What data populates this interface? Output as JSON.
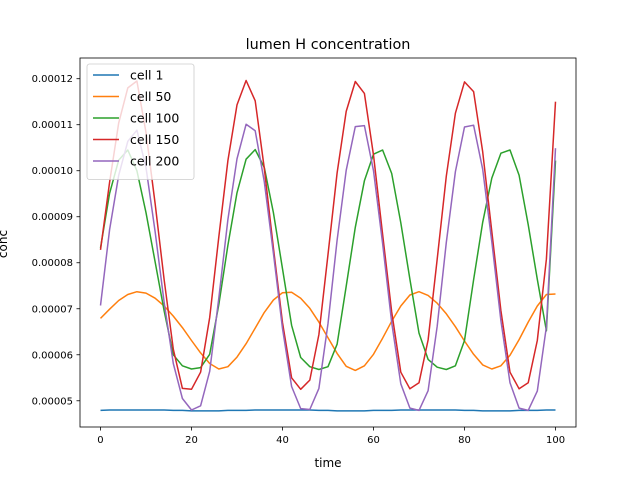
{
  "chart_data": {
    "type": "line",
    "title": "lumen H concentration",
    "xlabel": "time",
    "ylabel": "conc",
    "xlim": [
      -4.5,
      104.5
    ],
    "ylim": [
      4.43e-05,
      0.0001245
    ],
    "xticks": [
      0,
      20,
      40,
      60,
      80,
      100
    ],
    "xtick_labels": [
      "0",
      "20",
      "40",
      "60",
      "80",
      "100"
    ],
    "yticks": [
      5e-05,
      6e-05,
      7e-05,
      8e-05,
      9e-05,
      0.0001,
      0.00011,
      0.00012
    ],
    "ytick_labels": [
      "0.00005",
      "0.00006",
      "0.00007",
      "0.00008",
      "0.00009",
      "0.00010",
      "0.00011",
      "0.00012"
    ],
    "grid": false,
    "legend_position": "top-left",
    "x": [
      0,
      2,
      4,
      6,
      8,
      10,
      12,
      14,
      16,
      18,
      20,
      22,
      24,
      26,
      28,
      30,
      32,
      34,
      36,
      38,
      40,
      42,
      44,
      46,
      48,
      50,
      52,
      54,
      56,
      58,
      60,
      62,
      64,
      66,
      68,
      70,
      72,
      74,
      76,
      78,
      80,
      82,
      84,
      86,
      88,
      90,
      92,
      94,
      96,
      98,
      100
    ],
    "series": [
      {
        "name": "cell 1",
        "color": "#1f77b4",
        "values": [
          4.79e-05,
          4.8e-05,
          4.8e-05,
          4.8e-05,
          4.8e-05,
          4.8e-05,
          4.8e-05,
          4.8e-05,
          4.79e-05,
          4.79e-05,
          4.78e-05,
          4.78e-05,
          4.78e-05,
          4.78e-05,
          4.79e-05,
          4.79e-05,
          4.79e-05,
          4.8e-05,
          4.8e-05,
          4.8e-05,
          4.8e-05,
          4.8e-05,
          4.8e-05,
          4.8e-05,
          4.79e-05,
          4.79e-05,
          4.78e-05,
          4.78e-05,
          4.78e-05,
          4.78e-05,
          4.79e-05,
          4.79e-05,
          4.79e-05,
          4.8e-05,
          4.8e-05,
          4.8e-05,
          4.8e-05,
          4.8e-05,
          4.8e-05,
          4.8e-05,
          4.79e-05,
          4.79e-05,
          4.78e-05,
          4.78e-05,
          4.78e-05,
          4.78e-05,
          4.79e-05,
          4.79e-05,
          4.79e-05,
          4.8e-05,
          4.8e-05
        ]
      },
      {
        "name": "cell 50",
        "color": "#ff7f0e",
        "values": [
          6.79e-05,
          6.99e-05,
          7.18e-05,
          7.31e-05,
          7.37e-05,
          7.34e-05,
          7.23e-05,
          7.06e-05,
          6.84e-05,
          6.59e-05,
          6.31e-05,
          6.04e-05,
          5.81e-05,
          5.69e-05,
          5.74e-05,
          5.95e-05,
          6.24e-05,
          6.58e-05,
          6.92e-05,
          7.19e-05,
          7.35e-05,
          7.36e-05,
          7.23e-05,
          7.01e-05,
          6.71e-05,
          6.37e-05,
          6.03e-05,
          5.75e-05,
          5.66e-05,
          5.76e-05,
          6.01e-05,
          6.36e-05,
          6.73e-05,
          7.06e-05,
          7.3e-05,
          7.37e-05,
          7.29e-05,
          7.12e-05,
          6.89e-05,
          6.61e-05,
          6.3e-05,
          6.01e-05,
          5.78e-05,
          5.69e-05,
          5.76e-05,
          5.99e-05,
          6.33e-05,
          6.71e-05,
          7.06e-05,
          7.31e-05,
          7.32e-05
        ]
      },
      {
        "name": "cell 100",
        "color": "#2ca02c",
        "values": [
          8.32e-05,
          9.51e-05,
          0.0001023,
          0.0001045,
          0.0001,
          9.09e-05,
          8.02e-05,
          6.95e-05,
          6e-05,
          5.76e-05,
          5.69e-05,
          5.72e-05,
          6.01e-05,
          7.09e-05,
          8.38e-05,
          9.52e-05,
          0.0001025,
          0.0001046,
          0.0001007,
          9.09e-05,
          7.87e-05,
          6.64e-05,
          5.94e-05,
          5.74e-05,
          5.68e-05,
          5.74e-05,
          6.23e-05,
          7.49e-05,
          8.77e-05,
          9.78e-05,
          0.0001036,
          0.0001045,
          9.94e-05,
          8.87e-05,
          7.64e-05,
          6.47e-05,
          5.9e-05,
          5.73e-05,
          5.68e-05,
          5.76e-05,
          6.31e-05,
          7.63e-05,
          8.88e-05,
          9.84e-05,
          0.0001038,
          0.0001045,
          9.9e-05,
          8.83e-05,
          7.64e-05,
          6.52e-05,
          0.0001022
        ]
      },
      {
        "name": "cell 150",
        "color": "#d62728",
        "values": [
          8.28e-05,
          9.75e-05,
          0.0001104,
          0.000118,
          0.0001195,
          0.0001083,
          9.29e-05,
          7.62e-05,
          6.12e-05,
          5.27e-05,
          5.25e-05,
          5.62e-05,
          6.81e-05,
          8.56e-05,
          0.0001022,
          0.0001143,
          0.0001196,
          0.0001152,
          0.0001005,
          8.32e-05,
          6.7e-05,
          5.5e-05,
          5.25e-05,
          5.45e-05,
          6.44e-05,
          8.18e-05,
          9.95e-05,
          0.0001129,
          0.0001194,
          0.0001168,
          0.0001034,
          8.62e-05,
          6.93e-05,
          5.62e-05,
          5.26e-05,
          5.39e-05,
          6.32e-05,
          8.08e-05,
          9.88e-05,
          0.0001125,
          0.0001193,
          0.0001172,
          0.0001041,
          8.68e-05,
          6.96e-05,
          5.62e-05,
          5.26e-05,
          5.39e-05,
          6.31e-05,
          8.08e-05,
          0.000115
        ]
      },
      {
        "name": "cell 200",
        "color": "#9467bd",
        "values": [
          7.07e-05,
          8.72e-05,
          9.9e-05,
          0.0001064,
          0.0001088,
          0.0001007,
          8.68e-05,
          7.13e-05,
          5.81e-05,
          5.05e-05,
          4.8e-05,
          4.89e-05,
          5.64e-05,
          7.23e-05,
          8.94e-05,
          0.0001026,
          0.0001101,
          0.0001087,
          9.76e-05,
          8.21e-05,
          6.57e-05,
          5.31e-05,
          4.83e-05,
          4.81e-05,
          5.27e-05,
          6.68e-05,
          8.49e-05,
          0.0001001,
          0.0001096,
          0.0001098,
          0.0001,
          8.42e-05,
          6.7e-05,
          5.37e-05,
          4.84e-05,
          4.79e-05,
          5.22e-05,
          6.62e-05,
          8.44e-05,
          9.98e-05,
          0.0001095,
          0.0001099,
          0.0001003,
          8.46e-05,
          6.74e-05,
          5.39e-05,
          4.84e-05,
          4.79e-05,
          5.21e-05,
          6.61e-05,
          0.0001049
        ]
      }
    ]
  }
}
